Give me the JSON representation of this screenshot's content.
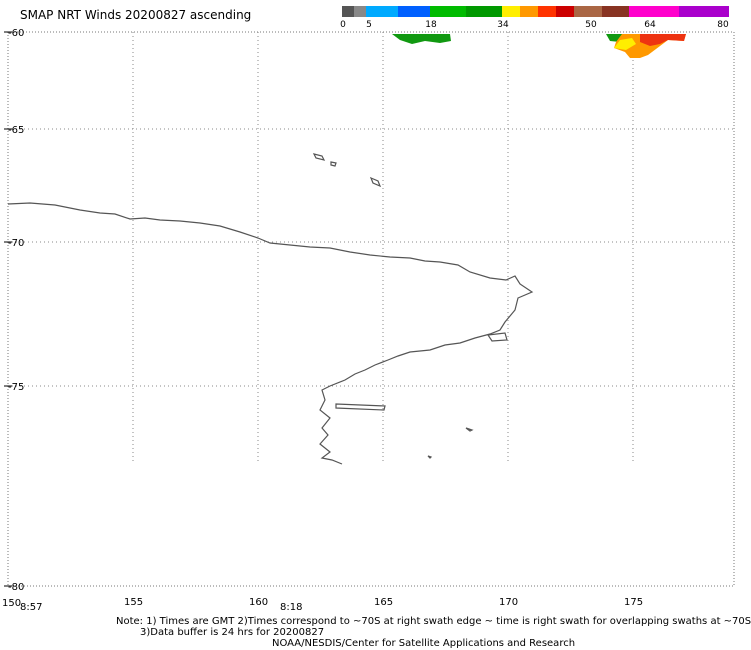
{
  "title": "SMAP NRT Winds 20200827 ascending",
  "colorbar": {
    "ticks": [
      "0",
      "5",
      "18",
      "34",
      "50",
      "64",
      "80"
    ],
    "colors": [
      "#555555",
      "#888888",
      "#00aaff",
      "#0060ff",
      "#00bb00",
      "#009900",
      "#ffee00",
      "#ff9900",
      "#ff3300",
      "#cc0000",
      "#aa6644",
      "#883322",
      "#ff00cc",
      "#aa00cc"
    ]
  },
  "axes": {
    "lat_labels": [
      "-60",
      "-65",
      "-70",
      "-75",
      "-80"
    ],
    "lon_labels": [
      "150",
      "155",
      "160",
      "165",
      "170",
      "175"
    ]
  },
  "swath_times": [
    "8:57",
    "8:18"
  ],
  "notes": {
    "line1": "Note: 1) Times are GMT 2)Times correspond to ~70S at right swath edge ~ time is right swath for overlapping swaths at ~70S",
    "line2": "3)Data buffer is 24 hrs for 20200827",
    "line3": "NOAA/NESDIS/Center for Satellite Applications and Research"
  }
}
